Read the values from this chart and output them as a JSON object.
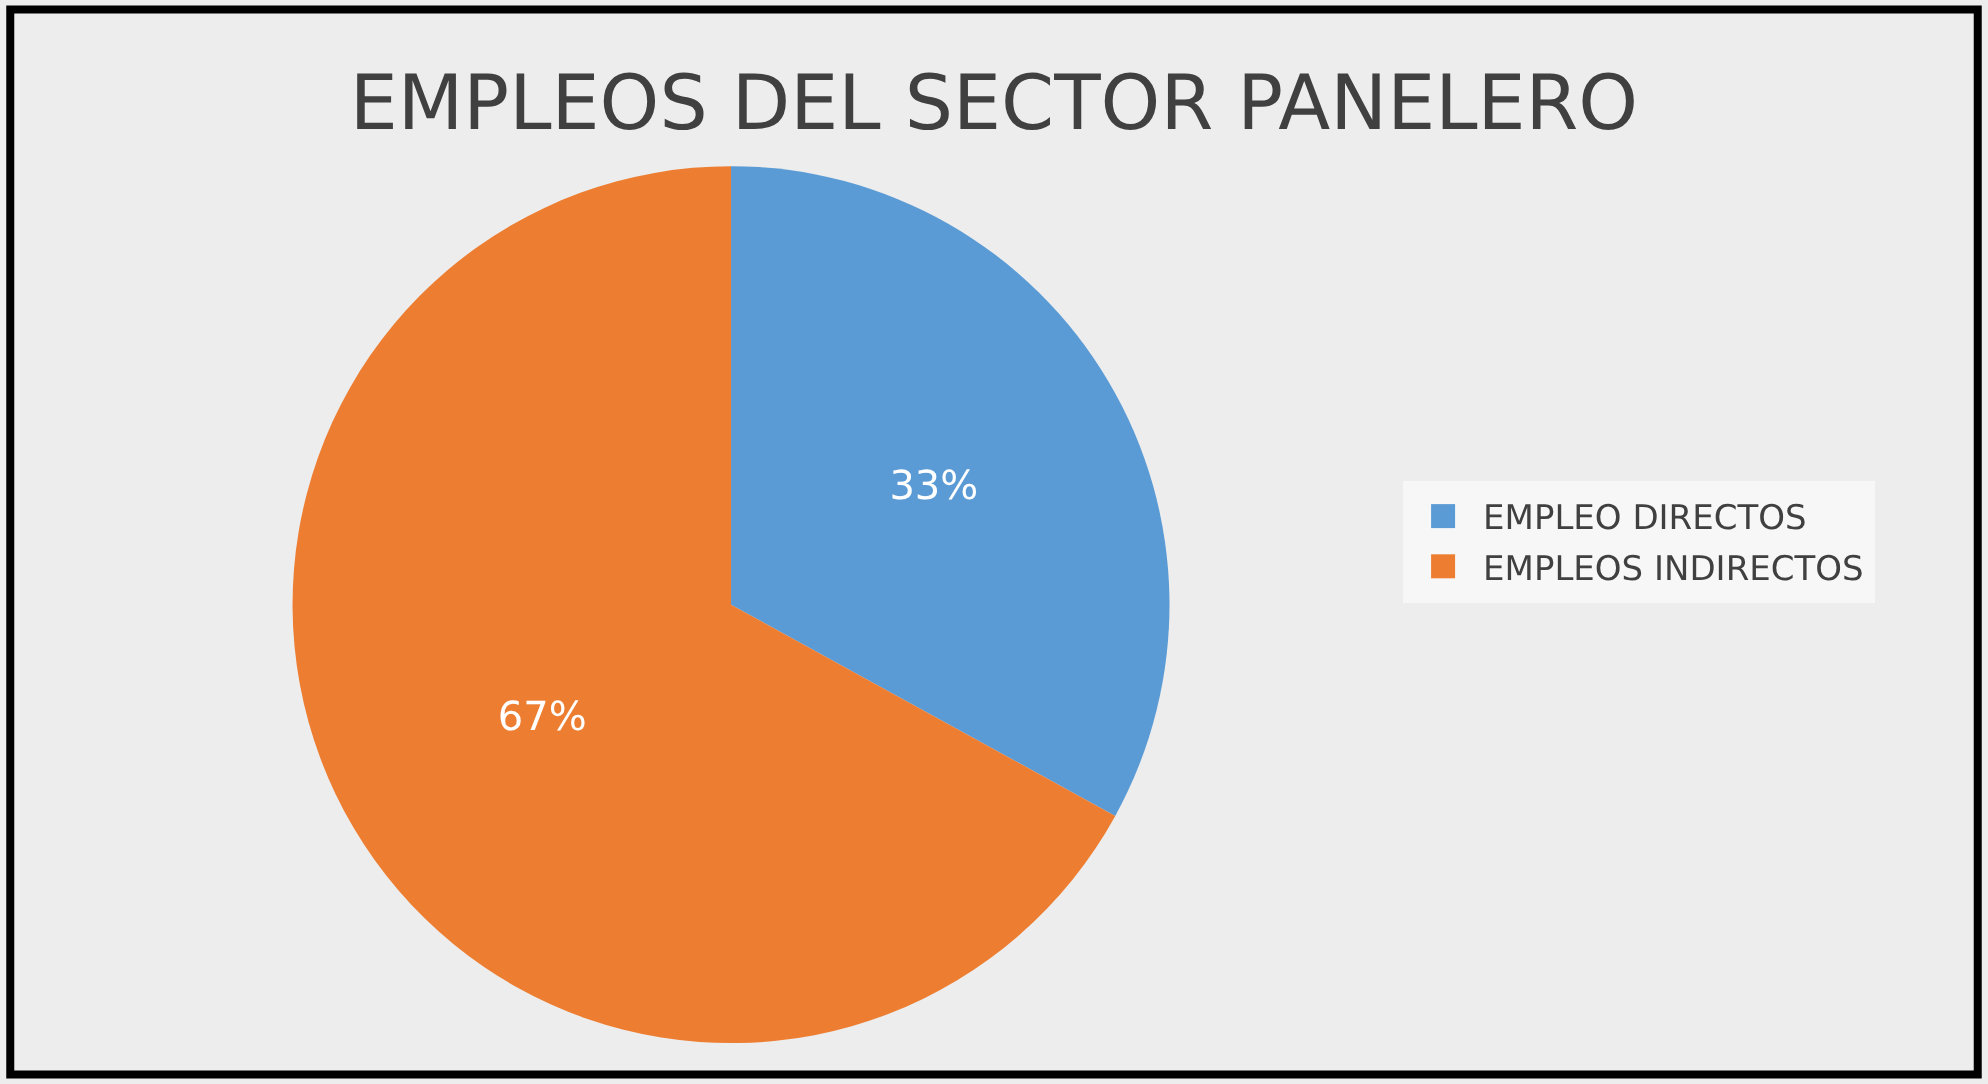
{
  "chart_data": {
    "type": "pie",
    "title": "EMPLEOS DEL SECTOR PANELERO",
    "categories": [
      "EMPLEO DIRECTOS",
      "EMPLEOS INDIRECTOS"
    ],
    "values": [
      33,
      67
    ],
    "colors": [
      "#5b9bd5",
      "#ed7d31"
    ],
    "value_labels": [
      "33%",
      "67%"
    ],
    "legend": "right"
  }
}
